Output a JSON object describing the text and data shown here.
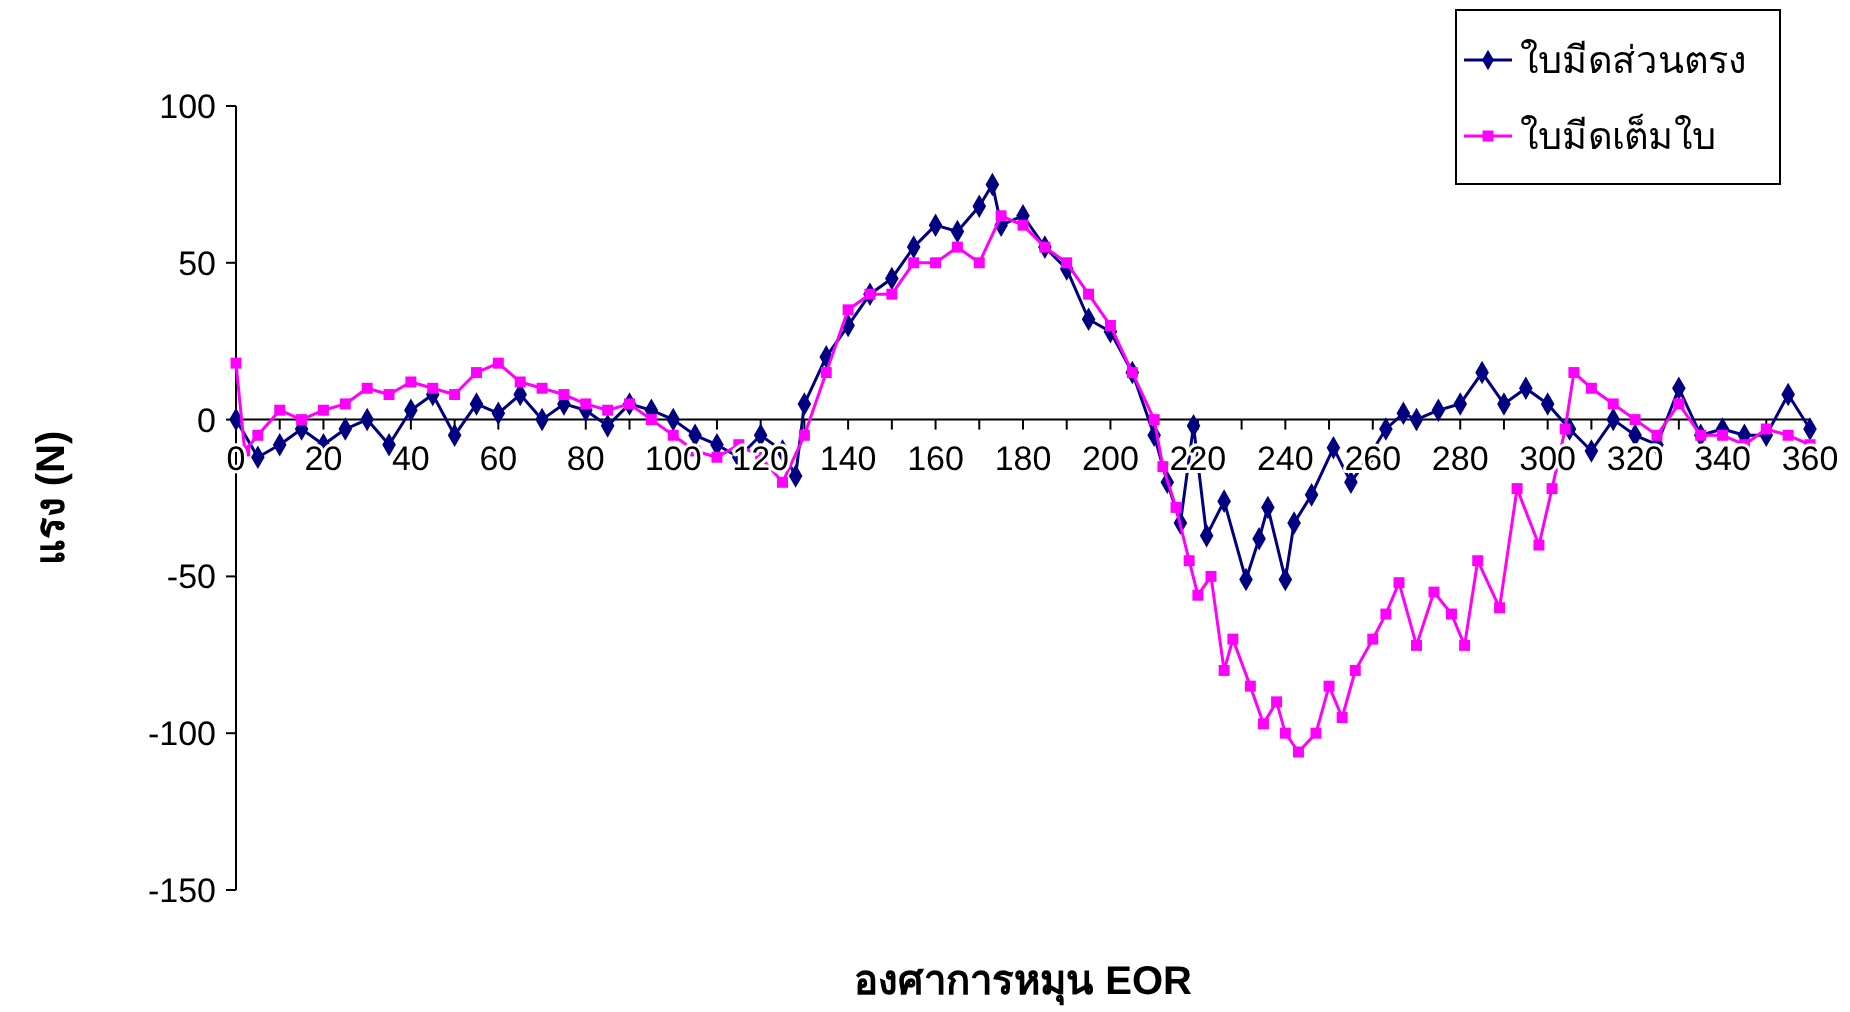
{
  "chart_data": {
    "type": "line",
    "xlabel": "องศาการหมุน EOR",
    "ylabel": "แรง (N)",
    "xlim": [
      0,
      360
    ],
    "ylim": [
      -150,
      100
    ],
    "xticks": [
      0,
      {
        "value": 10,
        "label": null
      },
      20,
      {
        "value": 30,
        "label": null
      },
      40,
      {
        "value": 50,
        "label": null
      },
      60,
      {
        "value": 70,
        "label": null
      },
      80,
      {
        "value": 90,
        "label": null
      },
      100,
      {
        "value": 110,
        "label": null
      },
      120,
      {
        "value": 130,
        "label": null
      },
      140,
      {
        "value": 150,
        "label": null
      },
      160,
      {
        "value": 170,
        "label": null
      },
      180,
      {
        "value": 190,
        "label": null
      },
      200,
      {
        "value": 210,
        "label": null
      },
      220,
      {
        "value": 230,
        "label": null
      },
      240,
      {
        "value": 250,
        "label": null
      },
      260,
      {
        "value": 270,
        "label": null
      },
      280,
      {
        "value": 290,
        "label": null
      },
      300,
      {
        "value": 310,
        "label": null
      },
      320,
      {
        "value": 330,
        "label": null
      },
      340,
      {
        "value": 350,
        "label": null
      },
      360
    ],
    "yticks": [
      -150,
      -100,
      -50,
      0,
      50,
      100
    ],
    "grid": false,
    "legend": "top right",
    "series": [
      {
        "name": "ใบมีดส่วนตรง",
        "color": "#000080",
        "marker": "diamond",
        "x": [
          0,
          5,
          10,
          15,
          20,
          25,
          30,
          35,
          40,
          45,
          50,
          55,
          60,
          65,
          70,
          75,
          80,
          85,
          90,
          95,
          100,
          105,
          110,
          115,
          120,
          125,
          128,
          130,
          135,
          140,
          145,
          150,
          155,
          160,
          165,
          170,
          173,
          175,
          180,
          185,
          190,
          195,
          200,
          205,
          210,
          213,
          216,
          219,
          222,
          226,
          231,
          234,
          236,
          240,
          242,
          246,
          251,
          255,
          259,
          263,
          267,
          270,
          275,
          280,
          285,
          290,
          295,
          300,
          305,
          310,
          315,
          320,
          325,
          330,
          335,
          340,
          345,
          350,
          355,
          360
        ],
        "values": [
          0,
          -12,
          -8,
          -3,
          -8,
          -3,
          0,
          -8,
          3,
          8,
          -5,
          5,
          2,
          8,
          0,
          5,
          3,
          -2,
          5,
          3,
          0,
          -5,
          -8,
          -12,
          -5,
          -10,
          -18,
          5,
          20,
          30,
          40,
          45,
          55,
          62,
          60,
          68,
          75,
          62,
          65,
          55,
          48,
          32,
          28,
          15,
          -5,
          -20,
          -33,
          -2,
          -37,
          -26,
          -51,
          -38,
          -28,
          -51,
          -33,
          -24,
          -9,
          -20,
          -12,
          -3,
          2,
          0,
          3,
          5,
          15,
          5,
          10,
          5,
          -3,
          -10,
          0,
          -5,
          -8,
          10,
          -5,
          -3,
          -5,
          -5,
          8,
          -3
        ]
      },
      {
        "name": "ใบมีดเต็มใบ",
        "color": "#ff00ff",
        "marker": "square",
        "x": [
          0,
          2,
          5,
          10,
          15,
          20,
          25,
          30,
          35,
          40,
          45,
          50,
          55,
          60,
          65,
          70,
          75,
          80,
          85,
          90,
          95,
          100,
          105,
          110,
          115,
          120,
          125,
          130,
          135,
          140,
          145,
          150,
          155,
          160,
          165,
          170,
          175,
          180,
          185,
          190,
          195,
          200,
          205,
          210,
          212,
          215,
          218,
          220,
          223,
          226,
          228,
          232,
          235,
          238,
          240,
          243,
          247,
          250,
          253,
          256,
          260,
          263,
          266,
          270,
          274,
          278,
          281,
          284,
          289,
          293,
          298,
          301,
          304,
          306,
          310,
          315,
          320,
          325,
          330,
          335,
          340,
          345,
          350,
          355,
          360
        ],
        "values": [
          18,
          -10,
          -5,
          3,
          0,
          3,
          5,
          10,
          8,
          12,
          10,
          8,
          15,
          18,
          12,
          10,
          8,
          5,
          3,
          5,
          0,
          -5,
          -10,
          -12,
          -8,
          -12,
          -20,
          -5,
          15,
          35,
          40,
          40,
          50,
          50,
          55,
          50,
          65,
          62,
          55,
          50,
          40,
          30,
          15,
          0,
          -15,
          -28,
          -45,
          -56,
          -50,
          -80,
          -70,
          -85,
          -97,
          -90,
          -100,
          -106,
          -100,
          -85,
          -95,
          -80,
          -70,
          -62,
          -52,
          -72,
          -55,
          -62,
          -72,
          -45,
          -60,
          -22,
          -40,
          -22,
          -3,
          15,
          10,
          5,
          0,
          -5,
          5,
          -5,
          -5,
          -8,
          -3,
          -5,
          -8
        ]
      }
    ]
  }
}
